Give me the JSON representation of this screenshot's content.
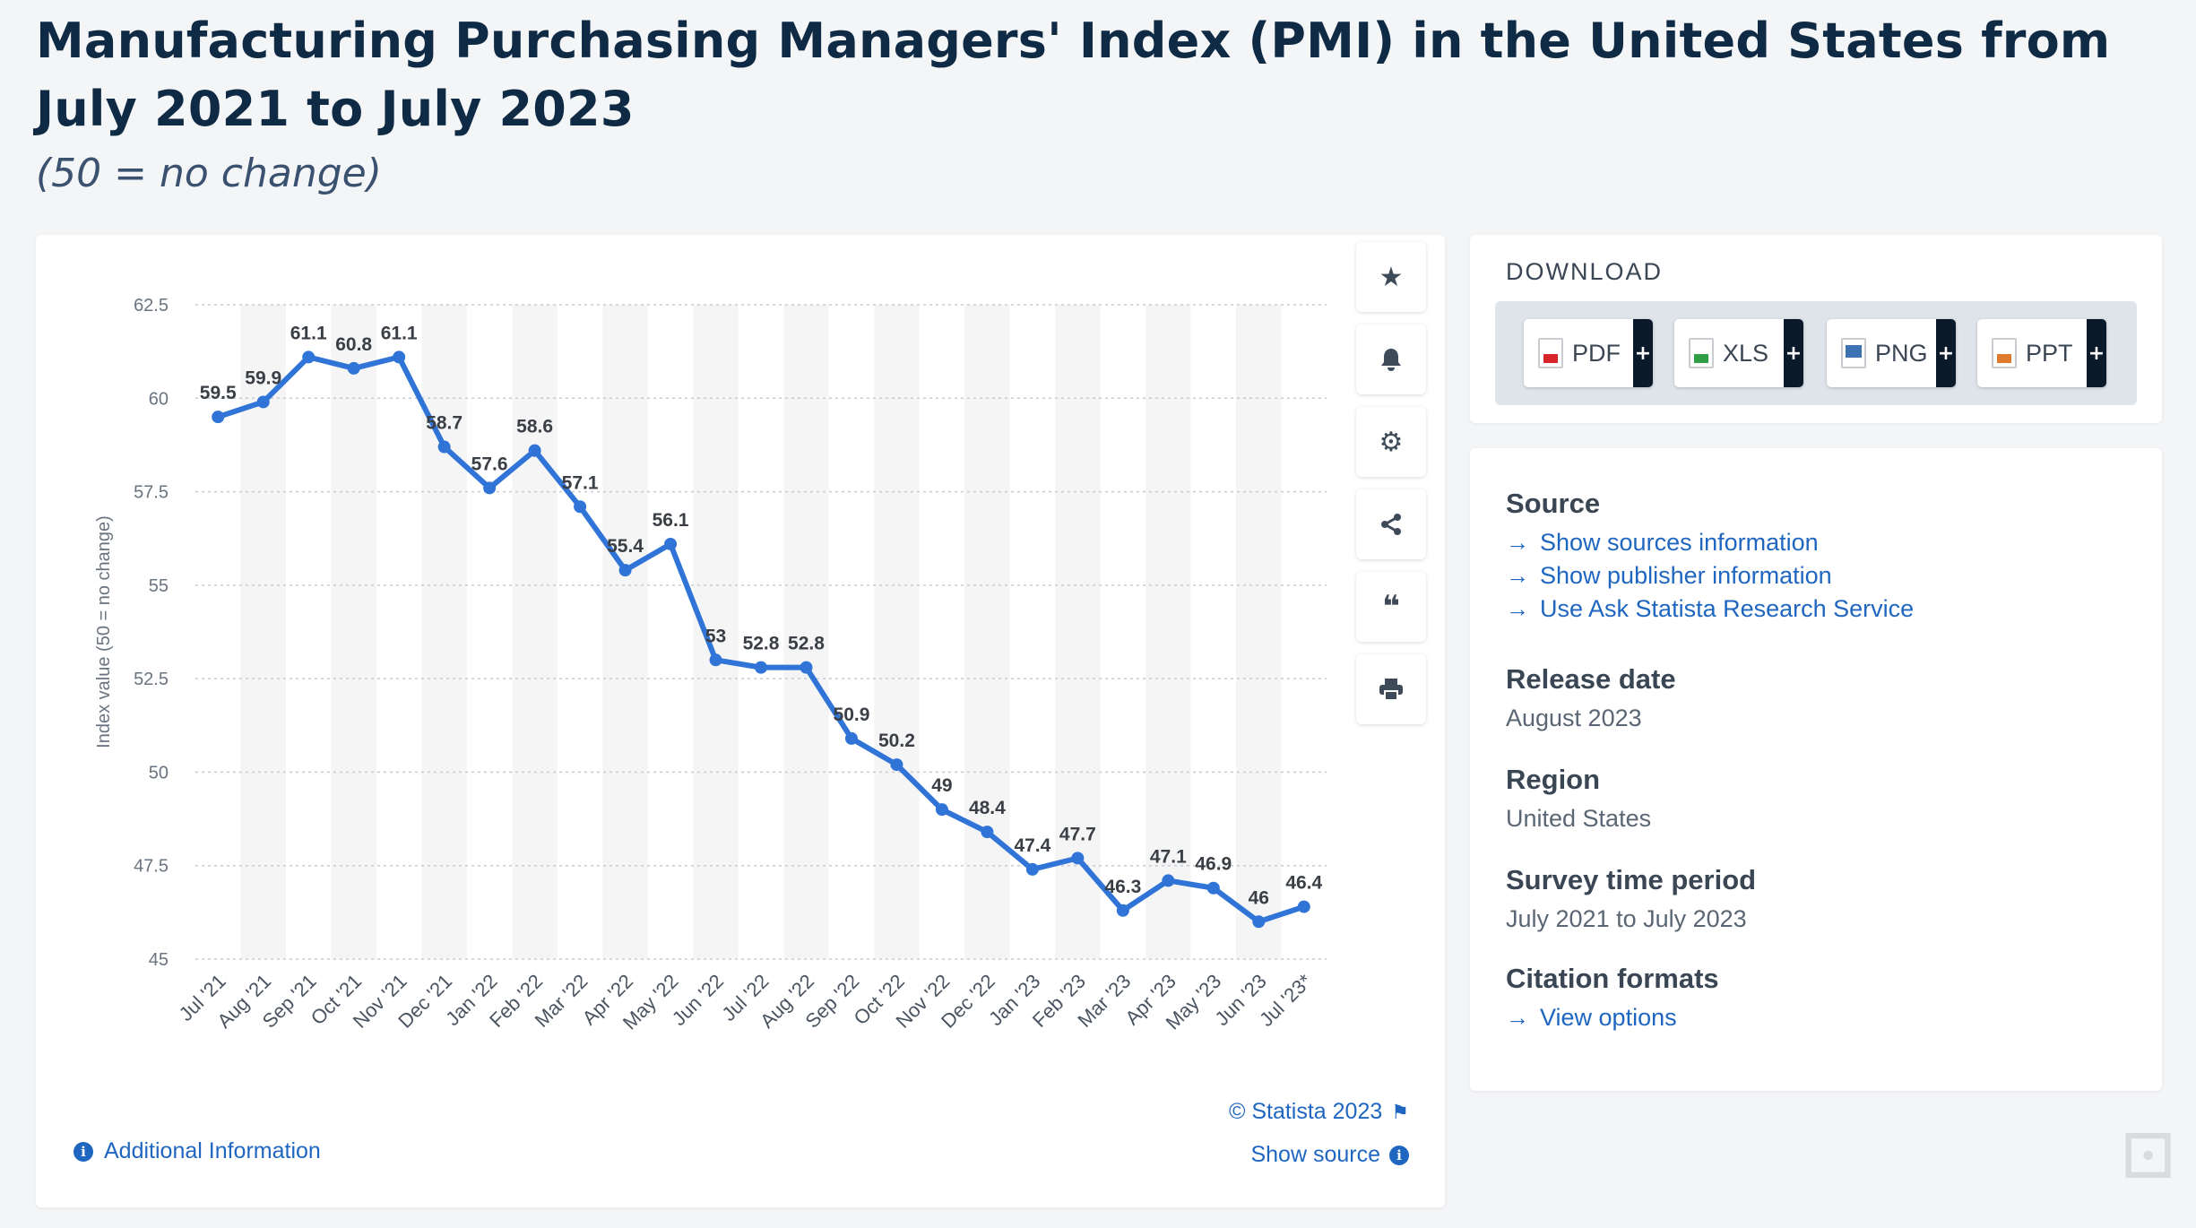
{
  "page": {
    "title": "Manufacturing Purchasing Managers' Index (PMI) in the United States from July 2021 to July 2023",
    "subtitle": "(50 = no change)"
  },
  "toolbar": {
    "icons": [
      "star-icon",
      "bell-icon",
      "gear-icon",
      "share-icon",
      "quote-icon",
      "print-icon"
    ]
  },
  "chart_footer": {
    "credit": "© Statista 2023",
    "show_source": "Show source",
    "additional_info": "Additional Information"
  },
  "download": {
    "heading": "DOWNLOAD",
    "formats": [
      {
        "label": "PDF",
        "color": "#d8262c"
      },
      {
        "label": "XLS",
        "color": "#2f9e44"
      },
      {
        "label": "PNG",
        "color": "#3d72b5"
      },
      {
        "label": "PPT",
        "color": "#e07a2d"
      }
    ]
  },
  "info": {
    "source_heading": "Source",
    "source_links": [
      "Show sources information",
      "Show publisher information",
      "Use Ask Statista Research Service"
    ],
    "release_heading": "Release date",
    "release_value": "August 2023",
    "region_heading": "Region",
    "region_value": "United States",
    "survey_heading": "Survey time period",
    "survey_value": "July 2021 to July 2023",
    "citation_heading": "Citation formats",
    "citation_link": "View options"
  },
  "colors": {
    "line": "#2f74d6",
    "accent_link": "#1f66c1",
    "stripe": "#f5f5f6"
  },
  "chart_data": {
    "type": "line",
    "title": "",
    "xlabel": "",
    "ylabel": "Index value (50 = no change)",
    "ylim": [
      45,
      62.5
    ],
    "yticks": [
      45,
      47.5,
      50,
      52.5,
      55,
      57.5,
      60,
      62.5
    ],
    "ytick_labels": [
      "45",
      "47.5",
      "50",
      "52.5",
      "55",
      "57.5",
      "60",
      "62.5"
    ],
    "grid": true,
    "categories": [
      "Jul '21",
      "Aug '21",
      "Sep '21",
      "Oct '21",
      "Nov '21",
      "Dec '21",
      "Jan '22",
      "Feb '22",
      "Mar '22",
      "Apr '22",
      "May '22",
      "Jun '22",
      "Jul '22",
      "Aug '22",
      "Sep '22",
      "Oct '22",
      "Nov '22",
      "Dec '22",
      "Jan '23",
      "Feb '23",
      "Mar '23",
      "Apr '23",
      "May '23",
      "Jun '23",
      "Jul '23*"
    ],
    "series": [
      {
        "values": [
          59.5,
          59.9,
          61.1,
          60.8,
          61.1,
          58.7,
          57.6,
          58.6,
          57.1,
          55.4,
          56.1,
          53,
          52.8,
          52.8,
          50.9,
          50.2,
          49,
          48.4,
          47.4,
          47.7,
          46.3,
          47.1,
          46.9,
          46,
          46.4
        ],
        "labels": [
          "59.5",
          "59.9",
          "61.1",
          "60.8",
          "61.1",
          "58.7",
          "57.6",
          "58.6",
          "57.1",
          "55.4",
          "56.1",
          "53",
          "52.8",
          "52.8",
          "50.9",
          "50.2",
          "49",
          "48.4",
          "47.4",
          "47.7",
          "46.3",
          "47.1",
          "46.9",
          "46",
          "46.4"
        ]
      }
    ]
  }
}
